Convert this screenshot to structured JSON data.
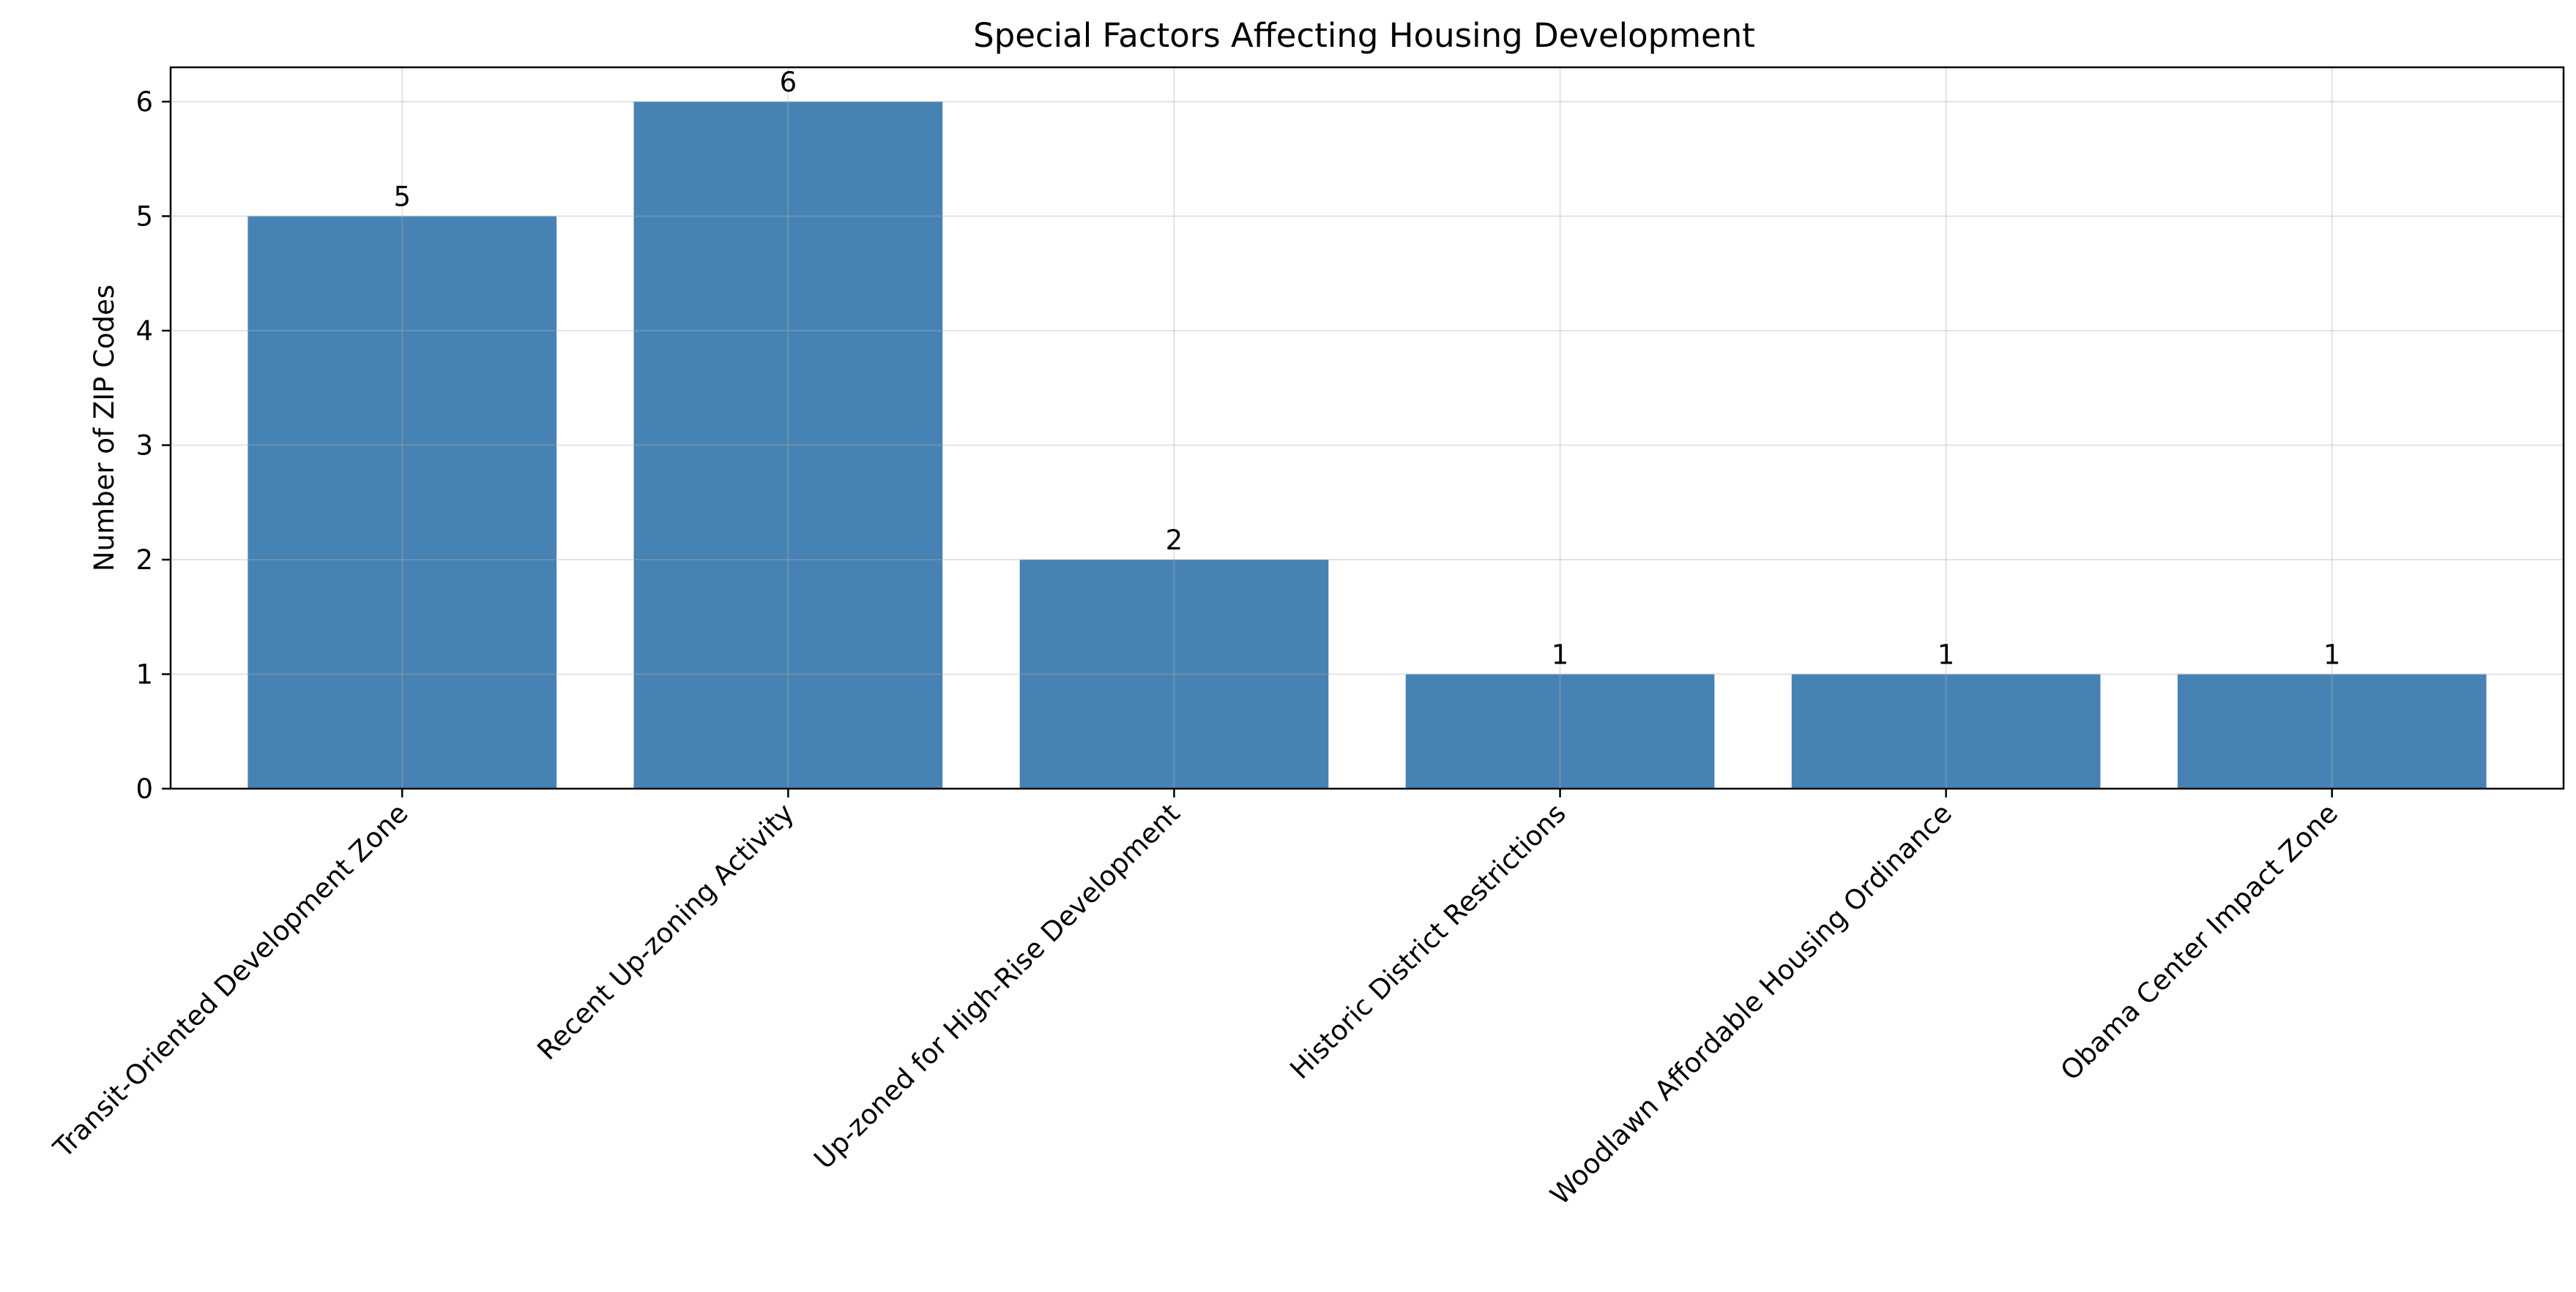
{
  "chart_data": {
    "type": "bar",
    "title": "Special Factors Affecting Housing Development",
    "xlabel": "",
    "ylabel": "Number of ZIP Codes",
    "categories": [
      "Transit-Oriented Development Zone",
      "Recent Up-zoning Activity",
      "Up-zoned for High-Rise Development",
      "Historic District Restrictions",
      "Woodlawn Affordable Housing Ordinance",
      "Obama Center Impact Zone"
    ],
    "values": [
      5,
      6,
      2,
      1,
      1,
      1
    ],
    "data_labels": [
      "5",
      "6",
      "2",
      "1",
      "1",
      "1"
    ],
    "y_ticks": [
      0,
      1,
      2,
      3,
      4,
      5,
      6
    ],
    "ylim": [
      0,
      6.3
    ],
    "grid": true,
    "legend": "none",
    "bar_color": "#4682b4"
  }
}
